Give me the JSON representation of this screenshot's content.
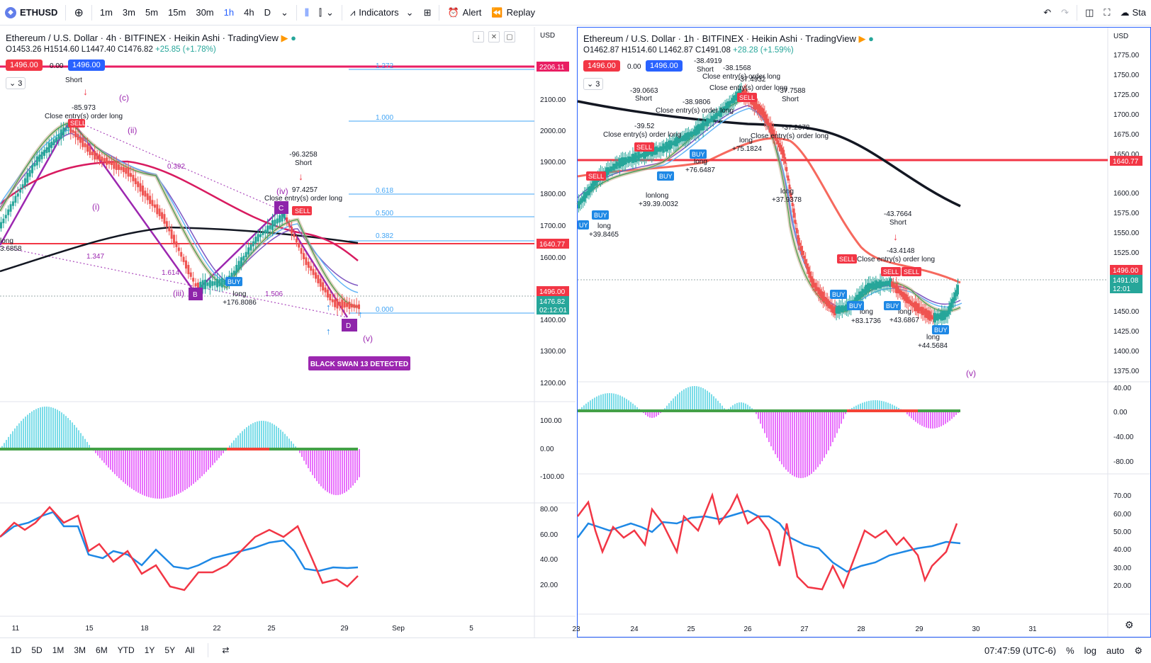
{
  "toolbar": {
    "symbol": "ETHUSD",
    "intervals": [
      "1m",
      "3m",
      "5m",
      "15m",
      "30m",
      "1h",
      "4h",
      "D"
    ],
    "active_interval": "1h",
    "indicators_label": "Indicators",
    "alert_label": "Alert",
    "replay_label": "Replay",
    "right_cut_label": "Sta"
  },
  "left_chart": {
    "title": "Ethereum / U.S. Dollar · 4h · BITFINEX · Heikin Ashi · TradingView",
    "ohlc": {
      "o": "O1453.26",
      "h": "H1514.60",
      "l": "L1447.40",
      "c": "C1476.82",
      "chg": "+25.85 (+1.78%)"
    },
    "sell_price": "1496.00",
    "spread": "0.00",
    "buy_price": "1496.00",
    "count": "3",
    "currency": "USD",
    "price_ticks": [
      "2100.00",
      "2000.00",
      "1900.00",
      "1800.00",
      "1700.00",
      "1600.00",
      "1400.00",
      "1300.00",
      "1200.00"
    ],
    "osc_ticks": [
      "100.00",
      "0.00",
      "-100.00"
    ],
    "rsi_ticks": [
      "80.00",
      "60.00",
      "40.00",
      "20.00"
    ],
    "price_tags": {
      "top": "2206.11",
      "red_line": "1640.77",
      "bid": "1496.00",
      "last": "1476.82",
      "timer": "02:12:01"
    },
    "date_ticks": [
      "11",
      "15",
      "18",
      "22",
      "25",
      "29",
      "Sep",
      "5"
    ],
    "fib_levels": [
      "1.272",
      "1.000",
      "0.618",
      "0.500",
      "0.382",
      "0.000"
    ],
    "pattern_labels": {
      "c": "(c)",
      "ii": "(ii)",
      "i": "(i)",
      "iii": "(iii)",
      "iv": "(iv)",
      "v": "(v)",
      "B": "B",
      "C": "C",
      "D": "D"
    },
    "ratios": [
      "0.392",
      "1.347",
      "1.614",
      "1.506"
    ],
    "annotations": {
      "short1_label": "Short",
      "short1_value": "-85.973",
      "close1": "Close entry(s) order long",
      "short2_value": "-96.3258",
      "short2_label": "Short",
      "close2_value": "97.4257",
      "close2": "Close entry(s) order long",
      "long1_label": "long",
      "long1_value": "+176.8086",
      "long0_label": "long",
      "long0_value": "3.6858",
      "buy": "BUY",
      "sell": "SELL"
    },
    "black_swan": "BLACK SWAN 13 DETECTED"
  },
  "right_chart": {
    "title": "Ethereum / U.S. Dollar · 1h · BITFINEX · Heikin Ashi · TradingView",
    "ohlc": {
      "o": "O1462.87",
      "h": "H1514.60",
      "l": "L1462.87",
      "c": "C1491.08",
      "chg": "+28.28 (+1.59%)"
    },
    "sell_price": "1496.00",
    "spread": "0.00",
    "buy_price": "1496.00",
    "count": "3",
    "currency": "USD",
    "price_ticks": [
      "1775.00",
      "1750.00",
      "1725.00",
      "1700.00",
      "1675.00",
      "1650.00",
      "1600.00",
      "1575.00",
      "1550.00",
      "1525.00",
      "1450.00",
      "1425.00",
      "1400.00",
      "1375.00"
    ],
    "osc_ticks": [
      "40.00",
      "0.00",
      "-40.00",
      "-80.00"
    ],
    "rsi_ticks": [
      "70.00",
      "60.00",
      "50.00",
      "40.00",
      "30.00",
      "20.00"
    ],
    "price_tags": {
      "red_line": "1640.77",
      "bid": "1496.00",
      "last": "1491.08",
      "timer": "12:01"
    },
    "date_ticks": [
      "23",
      "24",
      "25",
      "26",
      "27",
      "28",
      "29",
      "30",
      "31"
    ],
    "wave_v": "(v)",
    "annotations": {
      "a1v": "-38.4919",
      "a1l": "Short",
      "a2v": "-38.1568",
      "a2l": "Close entry(s) order long",
      "a3v": "-37.4932",
      "a3l": "Close entry(s) order long",
      "a4v": "-39.0663",
      "a4l": "Short",
      "a5v": "-38.9806",
      "a5l": "Close entry(s) order long",
      "a6v": "-37.7588",
      "a6l": "Short",
      "a7v": "-39.52",
      "a7l": "Close entry(s) order long",
      "a8v": "-37.2678",
      "a8l": "Close entry(s) order long",
      "a9l": "long",
      "a9v": "+75.1824",
      "a10l": "long",
      "a10v": "+76.6487",
      "a11l": "lonlong",
      "a11v": "+39.39.0032",
      "a12l": "long",
      "a12v": "+37.9378",
      "a13l": "long",
      "a13v": "+39.8465",
      "a14v": "-43.7664",
      "a14l": "Short",
      "a15v": "-43.4148",
      "a15l": "Close entry(s) order long",
      "a16l": "long",
      "a16v": "+83.1736",
      "a17l": "long",
      "a17v": "+43.6867",
      "a18l": "long",
      "a18v": "+44.5684",
      "buy": "BUY",
      "sell": "SELL",
      "uy": "UY"
    }
  },
  "bottombar": {
    "ranges": [
      "1D",
      "5D",
      "1M",
      "3M",
      "6M",
      "YTD",
      "1Y",
      "5Y",
      "All"
    ],
    "time": "07:47:59 (UTC-6)",
    "pct": "%",
    "log": "log",
    "auto": "auto"
  },
  "colors": {
    "red": "#f23645",
    "blue": "#2962ff",
    "purple": "#9c27b0",
    "black": "#131722",
    "teal": "#26c6da",
    "pink": "#e040fb"
  }
}
